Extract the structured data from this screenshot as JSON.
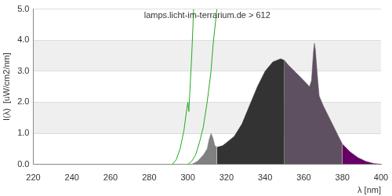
{
  "chart_data": {
    "type": "area",
    "title": "lamps.licht-im-terrarium.de > 612",
    "x_label": "λ [nm]",
    "y_label": "I(λ)  [uW/cm2/nm]",
    "xlim": [
      220,
      400
    ],
    "xticks": [
      220,
      240,
      260,
      280,
      300,
      320,
      340,
      360,
      380,
      400
    ],
    "ylim": [
      0,
      5
    ],
    "yticks": [
      {
        "value": 0,
        "label": "0.0"
      },
      {
        "value": 1,
        "label": "1.0"
      },
      {
        "value": 2,
        "label": "2.0"
      },
      {
        "value": 3,
        "label": "3.0"
      },
      {
        "value": 4,
        "label": "4.0"
      },
      {
        "value": 5,
        "label": "5.0"
      }
    ],
    "grid": true,
    "series": [
      {
        "type": "area",
        "color": "#808080",
        "x": [
          302,
          305,
          308,
          310,
          311,
          312,
          313,
          314,
          315
        ],
        "values": [
          0,
          0.1,
          0.3,
          0.5,
          0.8,
          1.0,
          0.85,
          0.6,
          0.55
        ]
      },
      {
        "type": "area",
        "color": "#333333",
        "x": [
          315,
          318,
          320,
          324,
          328,
          332,
          336,
          340,
          344,
          348,
          350
        ],
        "values": [
          0.55,
          0.6,
          0.7,
          0.9,
          1.3,
          1.9,
          2.5,
          3.0,
          3.3,
          3.4,
          3.35
        ]
      },
      {
        "type": "area",
        "color": "#5e5060",
        "x": [
          350,
          352,
          356,
          360,
          363,
          364,
          365,
          365.5,
          366,
          367,
          368,
          370,
          374,
          378,
          380
        ],
        "values": [
          3.35,
          3.2,
          2.95,
          2.7,
          2.5,
          2.7,
          3.6,
          3.9,
          3.7,
          2.9,
          2.2,
          1.9,
          1.4,
          0.9,
          0.65
        ]
      },
      {
        "type": "area",
        "color": "#660066",
        "x": [
          380,
          384,
          388,
          392,
          396,
          400
        ],
        "values": [
          0.65,
          0.4,
          0.22,
          0.1,
          0.03,
          0
        ]
      },
      {
        "type": "line",
        "color": "#22aa22",
        "x": [
          292,
          294,
          296,
          298,
          299.5,
          300,
          300.5,
          301,
          302,
          303
        ],
        "values": [
          0,
          0.15,
          0.5,
          1.1,
          1.8,
          2.0,
          1.7,
          2.3,
          3.5,
          5.0
        ]
      },
      {
        "type": "line",
        "color": "#22aa22",
        "x": [
          300,
          302,
          304,
          306,
          308,
          310,
          312,
          313,
          315
        ],
        "values": [
          0,
          0.1,
          0.3,
          0.7,
          1.2,
          2.0,
          3.0,
          3.8,
          5.0
        ]
      }
    ]
  }
}
